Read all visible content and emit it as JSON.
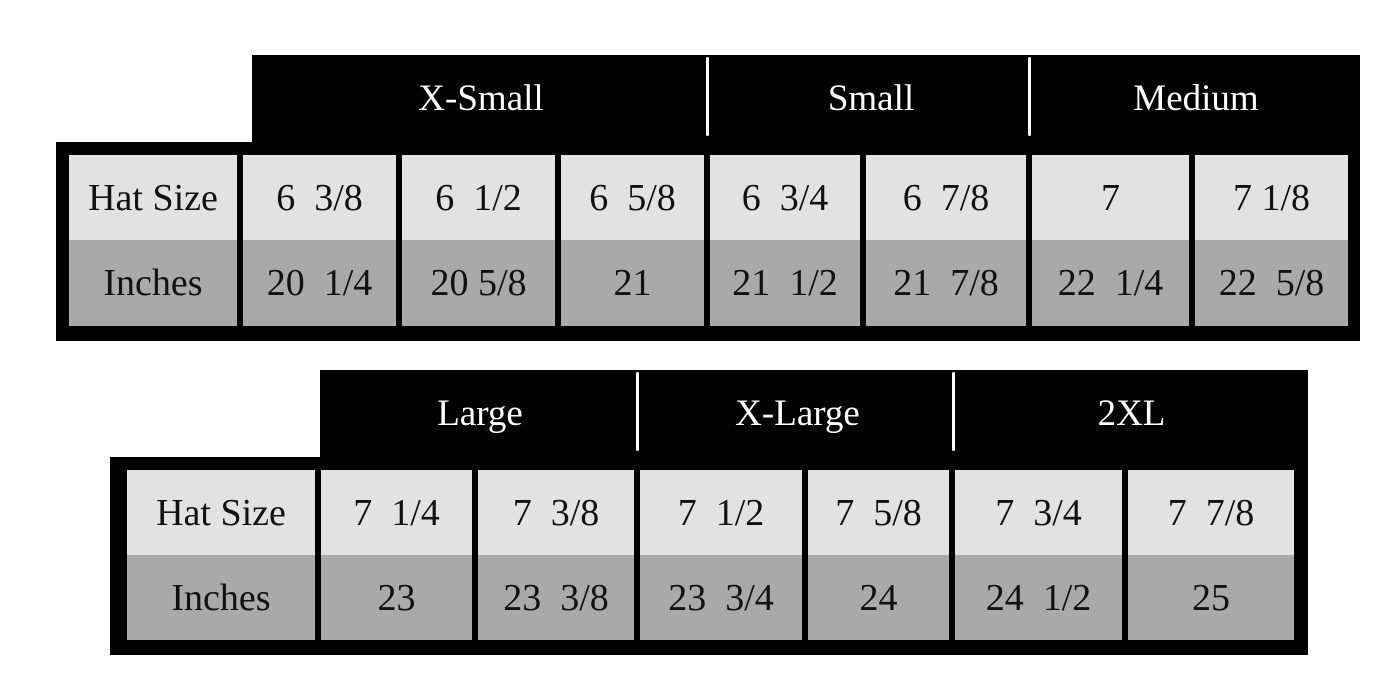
{
  "tables": [
    {
      "groups": [
        {
          "label": "X-Small",
          "span": 3
        },
        {
          "label": "Small",
          "span": 2
        },
        {
          "label": "Medium",
          "span": 2
        }
      ],
      "row_labels": [
        "Hat Size",
        "Inches"
      ],
      "hat_sizes": [
        "6  3/8",
        "6  1/2",
        "6  5/8",
        "6  3/4",
        "6  7/8",
        "7",
        "7 1/8"
      ],
      "inches": [
        "20  1/4",
        "20 5/8",
        "21",
        "21  1/2",
        "21  7/8",
        "22  1/4",
        "22  5/8"
      ]
    },
    {
      "groups": [
        {
          "label": "Large",
          "span": 2
        },
        {
          "label": "X-Large",
          "span": 2
        },
        {
          "label": "2XL",
          "span": 2
        }
      ],
      "row_labels": [
        "Hat Size",
        "Inches"
      ],
      "hat_sizes": [
        "7  1/4",
        "7  3/8",
        "7  1/2",
        "7  5/8",
        "7  3/4",
        "7  7/8"
      ],
      "inches": [
        "23",
        "23  3/8",
        "23  3/4",
        "24",
        "24  1/2",
        "25"
      ]
    }
  ],
  "colors": {
    "header_bg": "#000000",
    "hat_size_row": "#e2e2e2",
    "inches_row": "#a9a9a9"
  }
}
